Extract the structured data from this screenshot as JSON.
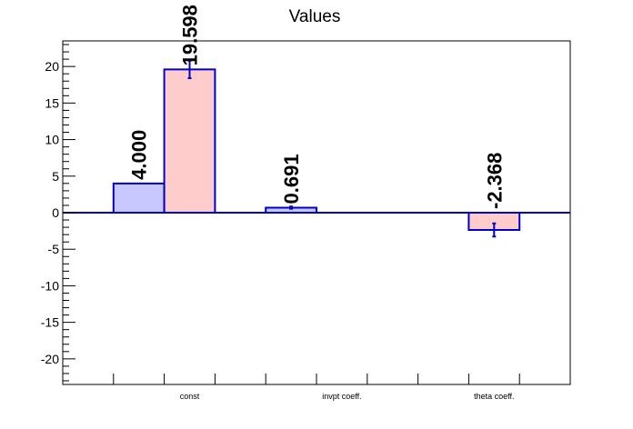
{
  "chart_data": {
    "type": "bar",
    "title": "Values",
    "xlabel": "",
    "ylabel": "",
    "ylim": [
      -23.5,
      23.5
    ],
    "grid": false,
    "categories": [
      "const",
      "invpt coeff.",
      "theta coeff."
    ],
    "yticks": [
      -20,
      -15,
      -10,
      -5,
      0,
      5,
      10,
      15,
      20
    ],
    "series": [
      {
        "fill": "#c8c8ff",
        "values": [
          4.0,
          0.691,
          null
        ],
        "errors": [
          0,
          0.15,
          0
        ],
        "value_labels": [
          "4.000",
          "0.691",
          ""
        ]
      },
      {
        "fill": "#ffcccc",
        "values": [
          19.598,
          null,
          -2.368
        ],
        "errors": [
          1.2,
          0,
          0.9
        ],
        "value_labels": [
          "19.598",
          "",
          "-2.368"
        ]
      }
    ],
    "bar_outline_color": "#0000cc",
    "axis_color": "#000000"
  }
}
